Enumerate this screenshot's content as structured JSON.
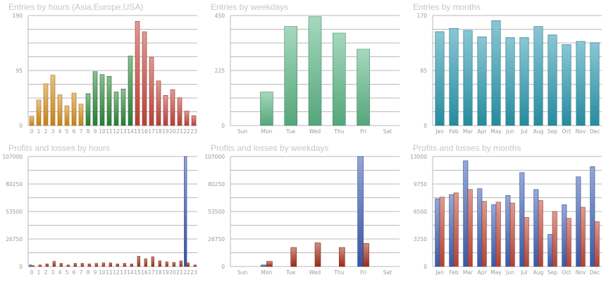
{
  "colors": {
    "grid": "#b9b9b9",
    "tick": "#9a9a9a",
    "title": "#c6c6c6",
    "orange": "#d8901c",
    "green": "#2e8a3b",
    "red": "#c8483c",
    "mint": "#5db888",
    "teal": "#2a9ab0",
    "blue": "#3d5db4",
    "darkred": "#a8321e",
    "profit_blue": "#3f63b8",
    "loss_red": "#c24a3a"
  },
  "chart_data": [
    {
      "id": "hours",
      "type": "bar",
      "title": "Entries by hours (Asia,Europe,USA)",
      "categories": [
        "0",
        "1",
        "2",
        "3",
        "4",
        "5",
        "6",
        "7",
        "8",
        "9",
        "10",
        "11",
        "12",
        "13",
        "14",
        "15",
        "16",
        "17",
        "18",
        "19",
        "20",
        "21",
        "22",
        "23"
      ],
      "yticks": [
        "0",
        "95",
        "190"
      ],
      "ylim": [
        0,
        190
      ],
      "grid": true,
      "series": [
        {
          "values": [
            16,
            44,
            72,
            87,
            53,
            34,
            56,
            37,
            55,
            93,
            88,
            85,
            58,
            63,
            120,
            180,
            162,
            118,
            77,
            52,
            62,
            48,
            25,
            17
          ],
          "colors": [
            "orange",
            "orange",
            "orange",
            "orange",
            "orange",
            "orange",
            "orange",
            "orange",
            "green",
            "green",
            "green",
            "green",
            "green",
            "green",
            "green",
            "red",
            "red",
            "red",
            "red",
            "red",
            "red",
            "red",
            "red",
            "red"
          ]
        }
      ]
    },
    {
      "id": "weekdays",
      "type": "bar",
      "title": "Entries by weekdays",
      "categories": [
        "Sun",
        "Mon",
        "Tue",
        "Wed",
        "Thu",
        "Fri",
        "Sat"
      ],
      "yticks": [
        "0",
        "225",
        "450"
      ],
      "ylim": [
        0,
        450
      ],
      "grid": true,
      "series": [
        {
          "values": [
            0,
            137,
            405,
            445,
            378,
            312,
            0
          ],
          "color": "mint"
        }
      ]
    },
    {
      "id": "months",
      "type": "bar",
      "title": "Entries by months",
      "categories": [
        "Jan",
        "Feb",
        "Mar",
        "Apr",
        "May",
        "Jun",
        "Jul",
        "Aug",
        "Sep",
        "Oct",
        "Nov",
        "Dec"
      ],
      "yticks": [
        "0",
        "85",
        "170"
      ],
      "ylim": [
        0,
        170
      ],
      "grid": true,
      "series": [
        {
          "values": [
            145,
            150,
            147,
            137,
            162,
            136,
            136,
            153,
            140,
            125,
            130,
            128
          ],
          "color": "teal"
        }
      ]
    },
    {
      "id": "pl_hours",
      "type": "bar",
      "title": "Profits and losses by hours",
      "categories": [
        "0",
        "1",
        "2",
        "3",
        "4",
        "5",
        "6",
        "7",
        "8",
        "9",
        "10",
        "11",
        "12",
        "13",
        "14",
        "15",
        "16",
        "17",
        "18",
        "19",
        "20",
        "21",
        "22",
        "23"
      ],
      "yticks": [
        "0",
        "26750",
        "53500",
        "80250",
        "107000"
      ],
      "ylim": [
        0,
        107000
      ],
      "grid": true,
      "series": [
        {
          "name": "profits",
          "color": "blue",
          "values": [
            1500,
            0,
            0,
            0,
            0,
            0,
            0,
            0,
            0,
            0,
            0,
            0,
            0,
            0,
            0,
            0,
            0,
            0,
            0,
            0,
            0,
            0,
            107000,
            0
          ]
        },
        {
          "name": "losses",
          "color": "darkred",
          "values": [
            800,
            1500,
            2500,
            5000,
            3000,
            1500,
            3000,
            3000,
            2500,
            3000,
            3500,
            3500,
            2500,
            3000,
            2500,
            10000,
            7500,
            9500,
            5500,
            4500,
            4000,
            5500,
            3500,
            1500
          ]
        }
      ]
    },
    {
      "id": "pl_weekdays",
      "type": "bar",
      "title": "Profits and losses by weekdays",
      "categories": [
        "Sun",
        "Mon",
        "Tue",
        "Wed",
        "Thu",
        "Fri",
        "Sat"
      ],
      "yticks": [
        "0",
        "26750",
        "53500",
        "80250",
        "107000"
      ],
      "ylim": [
        0,
        107000
      ],
      "grid": true,
      "series": [
        {
          "name": "profits",
          "color": "blue",
          "values": [
            0,
            1500,
            0,
            0,
            0,
            107000,
            0
          ]
        },
        {
          "name": "losses",
          "color": "darkred",
          "values": [
            0,
            5000,
            18500,
            23000,
            18500,
            22500,
            0
          ]
        }
      ]
    },
    {
      "id": "pl_months",
      "type": "bar",
      "title": "Profits and losses by months",
      "categories": [
        "Jan",
        "Feb",
        "Mar",
        "Apr",
        "May",
        "Jun",
        "Jul",
        "Aug",
        "Sep",
        "Oct",
        "Nov",
        "Dec"
      ],
      "yticks": [
        "0",
        "3250",
        "6500",
        "9750",
        "13000"
      ],
      "ylim": [
        0,
        13000
      ],
      "grid": true,
      "series": [
        {
          "name": "profits",
          "color": "profit_blue",
          "values": [
            8000,
            8500,
            12500,
            9200,
            7300,
            8400,
            11100,
            9100,
            3800,
            7300,
            10600,
            11800
          ]
        },
        {
          "name": "losses",
          "color": "loss_red",
          "values": [
            8200,
            8700,
            9100,
            7700,
            7600,
            7500,
            5800,
            7800,
            6500,
            5700,
            7000,
            5300
          ]
        }
      ]
    }
  ]
}
